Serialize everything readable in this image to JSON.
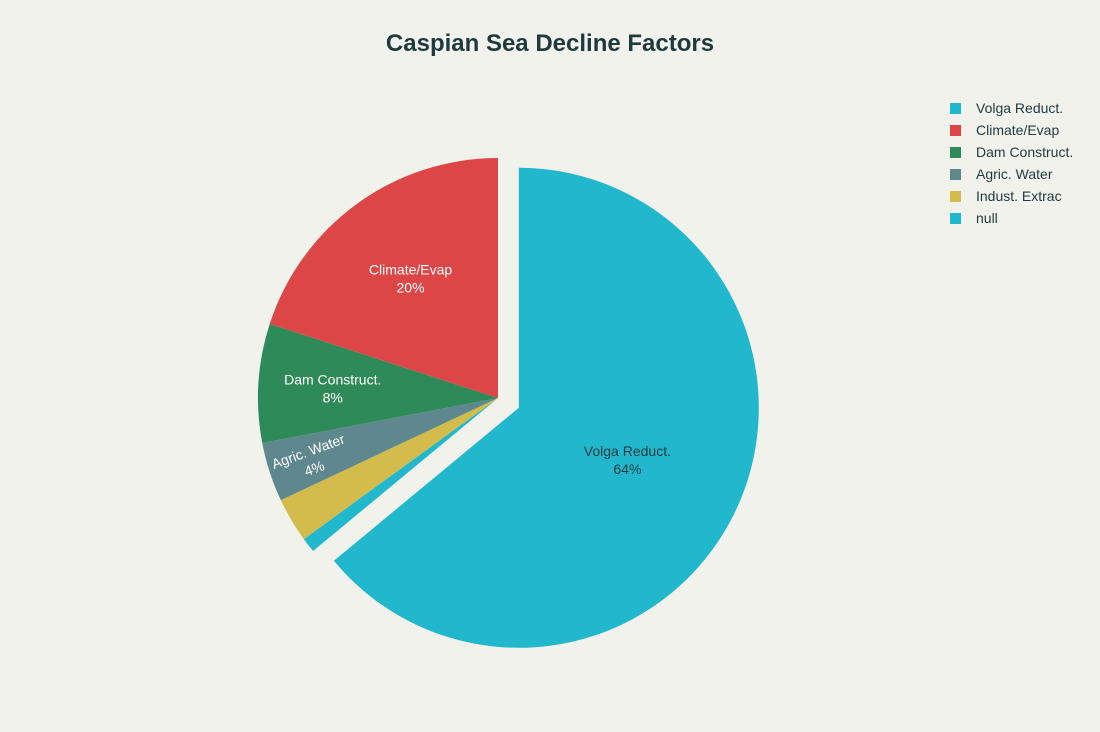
{
  "chart_data": {
    "type": "pie",
    "title": "Caspian Sea Decline Factors",
    "slices": [
      {
        "label": "Volga Reduct.",
        "value": 64,
        "color": "#21b8cd",
        "text_color": "#1e3a3f",
        "pulled": true,
        "show_label": true
      },
      {
        "label": "null",
        "value": 1,
        "color": "#21b8cd",
        "text_color": "#ffffff",
        "pulled": false,
        "show_label": false
      },
      {
        "label": "Indust. Extrac",
        "value": 3,
        "color": "#d3bc4c",
        "text_color": "#ffffff",
        "pulled": false,
        "show_label": false
      },
      {
        "label": "Agric. Water",
        "value": 4,
        "color": "#5e888e",
        "text_color": "#ffffff",
        "pulled": false,
        "show_label": true
      },
      {
        "label": "Dam Construct.",
        "value": 8,
        "color": "#2e8a58",
        "text_color": "#ffffff",
        "pulled": false,
        "show_label": true
      },
      {
        "label": "Climate/Evap",
        "value": 20,
        "color": "#dd4646",
        "text_color": "#ffffff",
        "pulled": false,
        "show_label": true
      }
    ],
    "legend": [
      "Volga Reduct.",
      "Climate/Evap",
      "Dam Construct.",
      "Agric. Water",
      "Indust. Extrac",
      "null"
    ],
    "legend_colors": [
      "#21b8cd",
      "#dd4646",
      "#2e8a58",
      "#5e888e",
      "#d3bc4c",
      "#21b8cd"
    ],
    "legend_position": "top-right",
    "percent_labels": [
      "64%",
      "1%",
      "3%",
      "4%",
      "8%",
      "20%"
    ]
  }
}
